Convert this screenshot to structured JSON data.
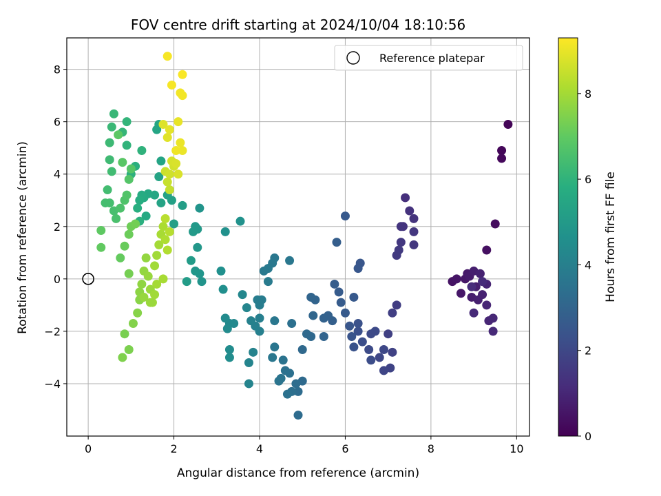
{
  "chart_data": {
    "type": "scatter",
    "title": "FOV centre drift starting at 2024/10/04 18:10:56",
    "xlabel": "Angular distance from reference (arcmin)",
    "ylabel": "Rotation from reference (arcmin)",
    "xlim": [
      -0.5,
      10.3
    ],
    "ylim": [
      -6.0,
      9.2
    ],
    "xticks": [
      0,
      2,
      4,
      6,
      8,
      10
    ],
    "yticks": [
      -4,
      -2,
      0,
      2,
      4,
      6,
      8
    ],
    "grid": true,
    "legend": {
      "placement": "top-right",
      "entries": [
        "Reference platepar"
      ]
    },
    "reference_point": {
      "x": 0,
      "y": 0
    },
    "colorbar": {
      "label": "Hours from first FF file",
      "colormap": "viridis",
      "range": [
        0,
        9.3
      ],
      "ticks": [
        0,
        2,
        4,
        6,
        8
      ]
    },
    "points": [
      [
        9.8,
        5.9,
        0.1
      ],
      [
        9.65,
        4.9,
        0.15
      ],
      [
        9.65,
        4.6,
        0.2
      ],
      [
        9.5,
        2.1,
        0.3
      ],
      [
        9.3,
        1.1,
        0.4
      ],
      [
        8.5,
        -0.1,
        0.5
      ],
      [
        8.6,
        0.0,
        0.55
      ],
      [
        8.7,
        -0.55,
        0.6
      ],
      [
        8.8,
        0.0,
        0.6
      ],
      [
        8.85,
        0.2,
        0.65
      ],
      [
        8.9,
        0.1,
        0.7
      ],
      [
        8.95,
        -0.7,
        0.75
      ],
      [
        9.0,
        0.3,
        0.8
      ],
      [
        9.05,
        -0.3,
        0.8
      ],
      [
        9.1,
        -0.8,
        0.85
      ],
      [
        9.15,
        0.2,
        0.9
      ],
      [
        9.2,
        -0.6,
        0.9
      ],
      [
        9.3,
        -0.2,
        0.95
      ],
      [
        9.3,
        -1.0,
        1.0
      ],
      [
        9.35,
        -1.6,
        1.0
      ],
      [
        9.45,
        -1.5,
        1.05
      ],
      [
        9.45,
        -2.0,
        1.1
      ],
      [
        9.0,
        -1.3,
        1.1
      ],
      [
        9.2,
        -0.1,
        1.15
      ],
      [
        8.95,
        -0.3,
        1.2
      ],
      [
        7.4,
        3.1,
        1.3
      ],
      [
        7.5,
        2.6,
        1.35
      ],
      [
        7.6,
        2.3,
        1.4
      ],
      [
        7.35,
        2.0,
        1.4
      ],
      [
        7.3,
        2.0,
        1.45
      ],
      [
        7.6,
        1.8,
        1.5
      ],
      [
        7.6,
        1.3,
        1.5
      ],
      [
        7.3,
        1.4,
        1.55
      ],
      [
        7.25,
        1.1,
        1.6
      ],
      [
        7.2,
        0.9,
        1.6
      ],
      [
        7.2,
        -1.0,
        1.7
      ],
      [
        7.1,
        -1.3,
        1.75
      ],
      [
        7.0,
        -2.1,
        1.8
      ],
      [
        7.1,
        -2.8,
        1.85
      ],
      [
        7.05,
        -3.4,
        1.9
      ],
      [
        6.9,
        -3.5,
        1.95
      ],
      [
        6.8,
        -3.0,
        2.0
      ],
      [
        6.9,
        -2.7,
        2.05
      ],
      [
        6.7,
        -2.0,
        2.1
      ],
      [
        6.6,
        -2.1,
        2.1
      ],
      [
        6.55,
        -2.7,
        2.15
      ],
      [
        6.6,
        -3.1,
        2.2
      ],
      [
        6.4,
        -2.4,
        2.25
      ],
      [
        6.3,
        -2.0,
        2.3
      ],
      [
        6.3,
        -1.7,
        2.35
      ],
      [
        6.2,
        -2.6,
        2.4
      ],
      [
        6.15,
        -2.2,
        2.45
      ],
      [
        6.1,
        -1.8,
        2.5
      ],
      [
        6.35,
        0.6,
        2.5
      ],
      [
        6.3,
        0.4,
        2.55
      ],
      [
        6.0,
        2.4,
        2.6
      ],
      [
        6.2,
        -0.7,
        2.6
      ],
      [
        6.0,
        -1.3,
        2.65
      ],
      [
        5.9,
        -0.9,
        2.7
      ],
      [
        5.85,
        -0.5,
        2.7
      ],
      [
        5.75,
        -0.2,
        2.75
      ],
      [
        5.8,
        1.4,
        2.8
      ],
      [
        5.7,
        -1.6,
        2.85
      ],
      [
        5.6,
        -1.4,
        2.9
      ],
      [
        5.5,
        -1.5,
        2.95
      ],
      [
        5.5,
        -2.2,
        3.0
      ],
      [
        5.3,
        -0.8,
        3.0
      ],
      [
        5.2,
        -0.7,
        3.05
      ],
      [
        5.25,
        -1.4,
        3.1
      ],
      [
        5.2,
        -2.2,
        3.15
      ],
      [
        5.1,
        -2.1,
        3.2
      ],
      [
        5.0,
        -2.7,
        3.2
      ],
      [
        5.0,
        -3.9,
        3.25
      ],
      [
        4.9,
        -5.2,
        3.3
      ],
      [
        4.9,
        -4.3,
        3.3
      ],
      [
        4.85,
        -4.0,
        3.35
      ],
      [
        4.75,
        -4.3,
        3.4
      ],
      [
        4.7,
        -3.6,
        3.45
      ],
      [
        4.65,
        -4.4,
        3.5
      ],
      [
        4.6,
        -3.5,
        3.5
      ],
      [
        4.55,
        -3.1,
        3.55
      ],
      [
        4.5,
        -3.8,
        3.6
      ],
      [
        4.45,
        -3.9,
        3.6
      ],
      [
        4.35,
        -2.6,
        3.65
      ],
      [
        4.3,
        -3.0,
        3.7
      ],
      [
        4.35,
        0.8,
        3.7
      ],
      [
        4.3,
        0.6,
        3.75
      ],
      [
        4.2,
        0.4,
        3.8
      ],
      [
        4.1,
        0.3,
        3.8
      ],
      [
        4.2,
        -0.1,
        3.85
      ],
      [
        4.05,
        -0.8,
        3.9
      ],
      [
        4.0,
        -1.0,
        3.95
      ],
      [
        3.95,
        -0.8,
        3.95
      ],
      [
        4.0,
        -1.5,
        4.0
      ],
      [
        3.9,
        -1.8,
        4.05
      ],
      [
        4.0,
        -2.0,
        4.05
      ],
      [
        3.8,
        -1.6,
        4.1
      ],
      [
        3.85,
        -2.8,
        4.15
      ],
      [
        3.75,
        -3.2,
        4.2
      ],
      [
        3.75,
        -4.0,
        4.2
      ],
      [
        3.7,
        -1.1,
        4.25
      ],
      [
        3.6,
        -0.6,
        4.3
      ],
      [
        3.4,
        -1.7,
        4.35
      ],
      [
        3.3,
        -1.7,
        4.4
      ],
      [
        3.25,
        -1.9,
        4.45
      ],
      [
        3.2,
        -1.5,
        4.45
      ],
      [
        3.3,
        -2.7,
        4.5
      ],
      [
        3.3,
        -3.0,
        4.55
      ],
      [
        3.15,
        -0.4,
        4.6
      ],
      [
        3.1,
        0.3,
        4.65
      ],
      [
        3.2,
        1.8,
        4.7
      ],
      [
        3.55,
        2.2,
        4.75
      ],
      [
        4.7,
        0.7,
        3.7
      ],
      [
        4.75,
        -1.7,
        3.45
      ],
      [
        4.35,
        -1.6,
        3.7
      ],
      [
        2.6,
        2.7,
        4.8
      ],
      [
        2.65,
        -0.1,
        4.8
      ],
      [
        2.6,
        0.2,
        4.85
      ],
      [
        2.5,
        0.3,
        4.9
      ],
      [
        2.55,
        1.2,
        4.95
      ],
      [
        2.55,
        1.9,
        5.0
      ],
      [
        2.5,
        2.0,
        5.0
      ],
      [
        2.45,
        1.8,
        5.05
      ],
      [
        2.4,
        0.7,
        5.1
      ],
      [
        2.3,
        -0.1,
        5.15
      ],
      [
        2.2,
        2.8,
        5.2
      ],
      [
        2.0,
        2.1,
        5.25
      ],
      [
        1.95,
        3.0,
        5.3
      ],
      [
        1.85,
        3.2,
        5.35
      ],
      [
        1.7,
        2.9,
        5.4
      ],
      [
        1.65,
        3.9,
        5.4
      ],
      [
        1.7,
        4.5,
        5.45
      ],
      [
        1.6,
        5.7,
        5.5
      ],
      [
        1.65,
        5.9,
        5.5
      ],
      [
        1.55,
        3.2,
        5.55
      ],
      [
        1.4,
        3.25,
        5.6
      ],
      [
        1.35,
        2.4,
        5.65
      ],
      [
        1.3,
        3.1,
        5.7
      ],
      [
        1.25,
        3.2,
        5.75
      ],
      [
        1.2,
        3.0,
        5.8
      ],
      [
        1.15,
        2.7,
        5.85
      ],
      [
        1.2,
        2.2,
        5.9
      ],
      [
        1.1,
        4.3,
        5.9
      ],
      [
        1.0,
        4.0,
        5.95
      ],
      [
        1.25,
        4.9,
        6.0
      ],
      [
        0.9,
        5.1,
        6.05
      ],
      [
        0.9,
        6.0,
        6.1
      ],
      [
        0.8,
        5.6,
        6.15
      ],
      [
        0.6,
        6.3,
        6.2
      ],
      [
        0.55,
        5.8,
        6.25
      ],
      [
        0.5,
        5.2,
        6.3
      ],
      [
        0.5,
        4.55,
        6.35
      ],
      [
        0.55,
        4.1,
        6.4
      ],
      [
        0.45,
        3.4,
        6.45
      ],
      [
        0.4,
        2.9,
        6.5
      ],
      [
        0.5,
        2.9,
        6.5
      ],
      [
        0.6,
        2.6,
        6.55
      ],
      [
        0.65,
        2.3,
        6.6
      ],
      [
        0.75,
        2.7,
        6.65
      ],
      [
        0.85,
        3.0,
        6.7
      ],
      [
        0.9,
        3.2,
        6.75
      ],
      [
        0.95,
        3.8,
        6.8
      ],
      [
        1.0,
        4.2,
        6.85
      ],
      [
        0.8,
        4.45,
        6.9
      ],
      [
        0.7,
        5.5,
        6.95
      ],
      [
        0.3,
        1.85,
        7.0
      ],
      [
        0.3,
        1.2,
        7.05
      ],
      [
        0.75,
        0.8,
        7.1
      ],
      [
        0.85,
        1.25,
        7.15
      ],
      [
        0.95,
        1.7,
        7.2
      ],
      [
        1.0,
        2.0,
        7.25
      ],
      [
        1.1,
        2.1,
        7.3
      ],
      [
        0.95,
        0.2,
        7.35
      ],
      [
        0.85,
        -2.1,
        7.4
      ],
      [
        0.95,
        -2.7,
        7.45
      ],
      [
        0.8,
        -3.0,
        7.5
      ],
      [
        1.05,
        -1.7,
        7.55
      ],
      [
        1.15,
        -1.3,
        7.6
      ],
      [
        1.2,
        -0.8,
        7.65
      ],
      [
        1.2,
        -0.5,
        7.7
      ],
      [
        1.25,
        -0.2,
        7.75
      ],
      [
        1.3,
        0.3,
        7.8
      ],
      [
        1.35,
        0.8,
        7.8
      ],
      [
        1.4,
        0.1,
        7.85
      ],
      [
        1.45,
        -0.4,
        7.9
      ],
      [
        1.5,
        -0.9,
        7.95
      ],
      [
        1.55,
        0.5,
        8.0
      ],
      [
        1.6,
        0.9,
        8.0
      ],
      [
        1.65,
        1.3,
        8.05
      ],
      [
        1.7,
        1.7,
        8.1
      ],
      [
        1.75,
        2.0,
        8.15
      ],
      [
        1.8,
        1.5,
        8.2
      ],
      [
        1.85,
        1.1,
        8.25
      ],
      [
        1.9,
        1.8,
        8.3
      ],
      [
        1.8,
        2.3,
        8.35
      ],
      [
        1.75,
        0.0,
        8.1
      ],
      [
        1.6,
        -0.2,
        8.05
      ],
      [
        1.55,
        -0.6,
        8.0
      ],
      [
        1.45,
        -0.9,
        7.9
      ],
      [
        1.3,
        -0.7,
        7.85
      ],
      [
        1.9,
        3.4,
        8.5
      ],
      [
        1.85,
        3.7,
        8.55
      ],
      [
        1.8,
        4.1,
        8.6
      ],
      [
        1.9,
        4.0,
        8.65
      ],
      [
        2.0,
        4.3,
        8.7
      ],
      [
        1.95,
        4.5,
        8.75
      ],
      [
        2.05,
        4.4,
        8.8
      ],
      [
        2.1,
        4.0,
        8.8
      ],
      [
        1.75,
        5.9,
        8.85
      ],
      [
        1.85,
        5.4,
        8.9
      ],
      [
        1.9,
        5.7,
        8.95
      ],
      [
        2.1,
        6.0,
        9.0
      ],
      [
        2.15,
        5.2,
        9.05
      ],
      [
        2.2,
        4.9,
        9.05
      ],
      [
        2.05,
        4.9,
        9.1
      ],
      [
        2.15,
        7.1,
        9.15
      ],
      [
        2.2,
        7.0,
        9.15
      ],
      [
        1.95,
        7.4,
        9.2
      ],
      [
        2.2,
        7.8,
        9.25
      ],
      [
        1.85,
        8.5,
        9.2
      ]
    ]
  }
}
